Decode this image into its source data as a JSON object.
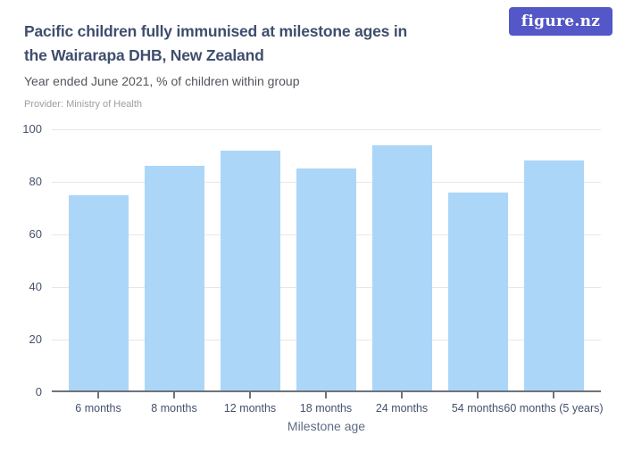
{
  "header": {
    "title_line1": "Pacific children fully immunised at milestone ages in",
    "title_line2": "the Wairarapa DHB, New Zealand",
    "subtitle": "Year ended June 2021, % of children within group",
    "provider": "Provider: Ministry of Health",
    "logo_text": "figure.nz"
  },
  "colors": {
    "bar": "#acd6f8",
    "gridline": "#e7e7ea",
    "axis_line": "#6e737b",
    "axis_label": "#46516c",
    "title": "#3f4e6e",
    "subtitle": "#53555c",
    "provider": "#9d9ea3",
    "logo_background": "#5357c7",
    "logo_text": "#ffffff"
  },
  "chart_data": {
    "type": "bar",
    "title": "Pacific children fully immunised at milestone ages in the Wairarapa DHB, New Zealand",
    "subtitle": "Year ended June 2021, % of children within group",
    "categories": [
      "6 months",
      "8 months",
      "12 months",
      "18 months",
      "24 months",
      "54 months",
      "60 months (5 years)"
    ],
    "values": [
      75,
      86,
      92,
      85,
      94,
      76,
      88
    ],
    "xlabel": "Milestone age",
    "ylabel": "",
    "ylim": [
      0,
      100
    ],
    "yticks": [
      0,
      20,
      40,
      60,
      80,
      100
    ],
    "grid": true,
    "legend": "none",
    "bar_color": "#acd6f8"
  }
}
